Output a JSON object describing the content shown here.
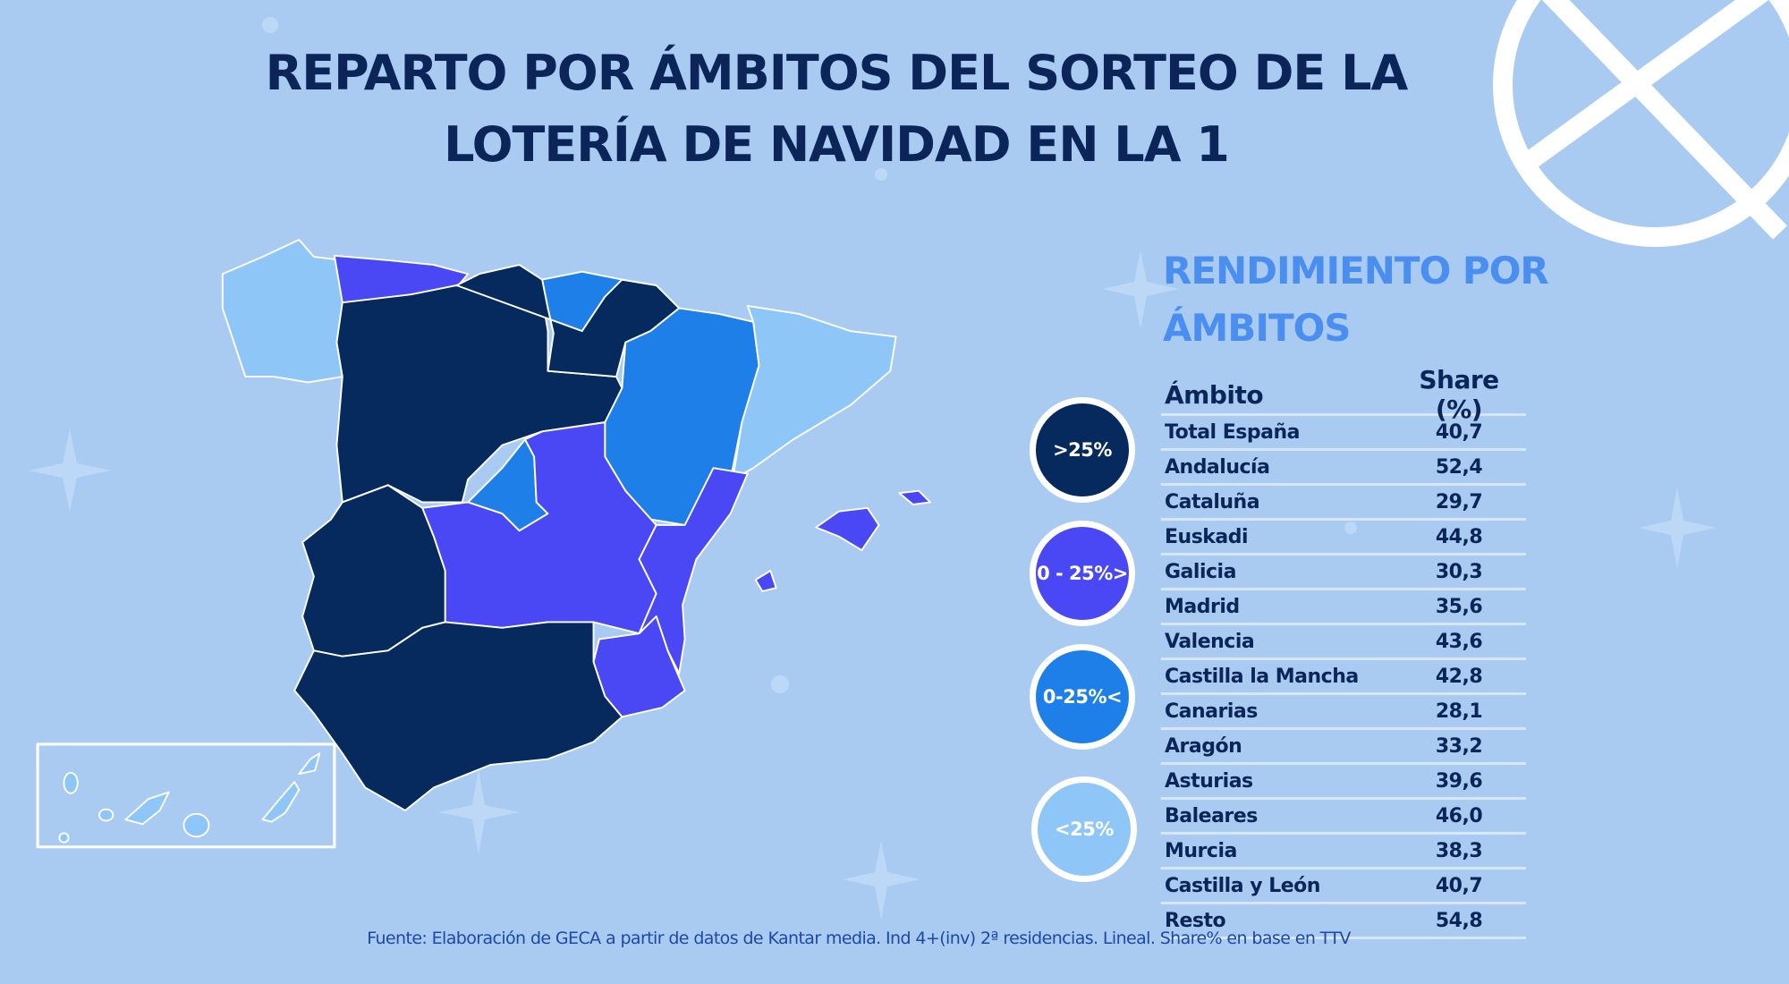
{
  "title": {
    "line1": "REPARTO POR ÁMBITOS DEL SORTEO DE LA",
    "line2": "LOTERÍA DE NAVIDAD EN LA 1"
  },
  "subtitle": {
    "line1": "RENDIMIENTO POR",
    "line2": "ÁMBITOS"
  },
  "colors": {
    "background": "#a9cbf2",
    "tier_gt25": "#062a5e",
    "tier_0_25_up": "#4a48f4",
    "tier_0_25_down": "#1f7fe8",
    "tier_lt25": "#8fc6f8",
    "title": "#0b2559",
    "subtitle": "#4a8ff0"
  },
  "legend": [
    {
      "label": ">25%",
      "color": "#062a5e"
    },
    {
      "label": "0 - 25%>",
      "color": "#4a48f4"
    },
    {
      "label": "0-25%<",
      "color": "#1f7fe8"
    },
    {
      "label": "<25%",
      "color": "#8fc6f8"
    }
  ],
  "table": {
    "headers": [
      "Ámbito",
      "Share (%)"
    ],
    "rows": [
      [
        "Total España",
        "40,7"
      ],
      [
        "Andalucía",
        "52,4"
      ],
      [
        "Cataluña",
        "29,7"
      ],
      [
        "Euskadi",
        "44,8"
      ],
      [
        "Galicia",
        "30,3"
      ],
      [
        "Madrid",
        "35,6"
      ],
      [
        "Valencia",
        "43,6"
      ],
      [
        "Castilla la Mancha",
        "42,8"
      ],
      [
        "Canarias",
        "28,1"
      ],
      [
        "Aragón",
        "33,2"
      ],
      [
        "Asturias",
        "39,6"
      ],
      [
        "Baleares",
        "46,0"
      ],
      [
        "Murcia",
        "38,3"
      ],
      [
        "Castilla y León",
        "40,7"
      ],
      [
        "Resto",
        "54,8"
      ]
    ]
  },
  "map_tiers": {
    "Galicia": "<25%",
    "Asturias": "0 - 25%>",
    "Castilla y León": ">25%",
    "Euskadi": "0-25%<",
    "Resto": ">25%",
    "Aragón": "0-25%<",
    "Cataluña": "<25%",
    "Madrid": "0-25%<",
    "Castilla la Mancha": "0 - 25%>",
    "Valencia": "0 - 25%>",
    "Murcia": "0 - 25%>",
    "Baleares": "0 - 25%>",
    "Andalucía": ">25%",
    "Canarias": "<25%"
  },
  "footer": "Fuente: Elaboración de GECA a partir de datos de Kantar media. Ind 4+(inv) 2ª residencias. Lineal. Share% en base en TTV"
}
